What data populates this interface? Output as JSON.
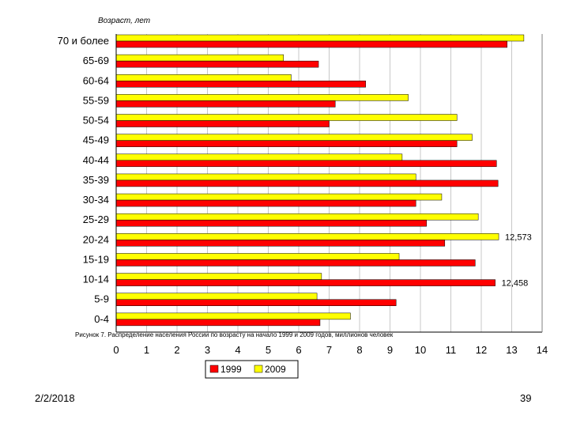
{
  "chart_data": {
    "type": "bar",
    "orientation": "horizontal",
    "axis_title": "Возраст, лет",
    "caption": "Рисунок 7. Распределение населения России по возрасту на начало 1999 и 2009 годов, миллионов человек",
    "categories": [
      "70 и более",
      "65-69",
      "60-64",
      "55-59",
      "50-54",
      "45-49",
      "40-44",
      "35-39",
      "30-34",
      "25-29",
      "20-24",
      "15-19",
      "10-14",
      "5-9",
      "0-4"
    ],
    "series": [
      {
        "name": "1999",
        "color": "#ff0000",
        "values": [
          12.85,
          6.65,
          8.2,
          7.2,
          7.0,
          11.2,
          12.5,
          12.55,
          9.85,
          10.2,
          10.8,
          11.8,
          12.458,
          9.2,
          6.7
        ]
      },
      {
        "name": "2009",
        "color": "#ffff00",
        "values": [
          13.4,
          5.5,
          5.75,
          9.6,
          11.2,
          11.7,
          9.4,
          9.85,
          10.7,
          11.9,
          12.573,
          9.3,
          6.75,
          6.6,
          7.7
        ]
      }
    ],
    "data_labels": [
      {
        "category": "20-24",
        "series": "2009",
        "text": "12,573"
      },
      {
        "category": "10-14",
        "series": "1999",
        "text": "12,458"
      }
    ],
    "xlim": [
      0,
      14
    ],
    "x_ticks": [
      "0",
      "1",
      "2",
      "3",
      "4",
      "5",
      "6",
      "7",
      "8",
      "9",
      "10",
      "11",
      "12",
      "13",
      "14"
    ],
    "grid": true,
    "legend_position": "bottom-center"
  },
  "footer": {
    "date": "2/2/2018",
    "page": "39"
  }
}
